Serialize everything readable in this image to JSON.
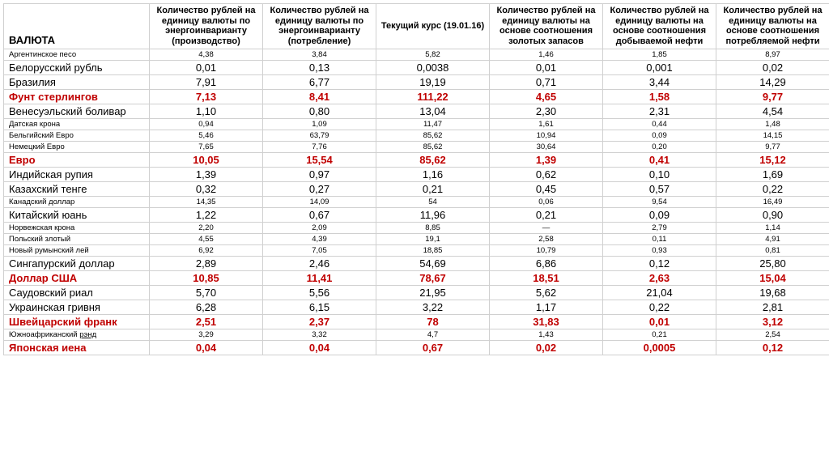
{
  "headers": {
    "currency": "ВАЛЮТА",
    "col1": "Количество рублей на единицу валюты по энергоинварианту (производство)",
    "col2": "Количество рублей на единицу валюты по энергоинварианту (потребление)",
    "col3": "Текущий курс (19.01.16)",
    "col4": "Количество рублей на единицу валюты  на основе соотношения золотых запасов",
    "col5": "Количество рублей на единицу валюты  на основе соотношения добываемой нефти",
    "col6": "Количество рублей на единицу валюты  на основе соотношения потребляемой нефти"
  },
  "rows": [
    {
      "name": "Аргентинское песо",
      "v": [
        "4,38",
        "3,84",
        "5,82",
        "1,46",
        "1,85",
        "8,97"
      ],
      "size": "small",
      "highlight": false,
      "underline": false
    },
    {
      "name": "Белорусский рубль",
      "v": [
        "0,01",
        "0,13",
        "0,0038",
        "0,01",
        "0,001",
        "0,02"
      ],
      "size": "normal",
      "highlight": false,
      "underline": false
    },
    {
      "name": "Бразилия",
      "v": [
        "7,91",
        "6,77",
        "19,19",
        "0,71",
        "3,44",
        "14,29"
      ],
      "size": "normal",
      "highlight": false,
      "underline": false
    },
    {
      "name": "Фунт стерлингов",
      "v": [
        "7,13",
        "8,41",
        "111,22",
        "4,65",
        "1,58",
        "9,77"
      ],
      "size": "normal",
      "highlight": true,
      "underline": false
    },
    {
      "name": "Венесуэльский боливар",
      "v": [
        "1,10",
        "0,80",
        "13,04",
        "2,30",
        "2,31",
        "4,54"
      ],
      "size": "normal",
      "highlight": false,
      "underline": false
    },
    {
      "name": "Датская крона",
      "v": [
        "0,94",
        "1,09",
        "11,47",
        "1,61",
        "0,44",
        "1,48"
      ],
      "size": "small",
      "highlight": false,
      "underline": false
    },
    {
      "name": "Бельгийский Евро",
      "v": [
        "5,46",
        "63,79",
        "85,62",
        "10,94",
        "0,09",
        "14,15"
      ],
      "size": "small",
      "highlight": false,
      "underline": false
    },
    {
      "name": "Немецкий Евро",
      "v": [
        "7,65",
        "7,76",
        "85,62",
        "30,64",
        "0,20",
        "9,77"
      ],
      "size": "small",
      "highlight": false,
      "underline": false
    },
    {
      "name": "Евро",
      "v": [
        "10,05",
        "15,54",
        "85,62",
        "1,39",
        "0,41",
        "15,12"
      ],
      "size": "normal",
      "highlight": true,
      "underline": false
    },
    {
      "name": "Индийская рупия",
      "v": [
        "1,39",
        "0,97",
        "1,16",
        "0,62",
        "0,10",
        "1,69"
      ],
      "size": "normal",
      "highlight": false,
      "underline": false
    },
    {
      "name": "Казахский тенге",
      "v": [
        "0,32",
        "0,27",
        "0,21",
        "0,45",
        "0,57",
        "0,22"
      ],
      "size": "normal",
      "highlight": false,
      "underline": false
    },
    {
      "name": "Канадский доллар",
      "v": [
        "14,35",
        "14,09",
        "54",
        "0,06",
        "9,54",
        "16,49"
      ],
      "size": "small",
      "highlight": false,
      "underline": false
    },
    {
      "name": "Китайский юань",
      "v": [
        "1,22",
        "0,67",
        "11,96",
        "0,21",
        "0,09",
        "0,90"
      ],
      "size": "normal",
      "highlight": false,
      "underline": false
    },
    {
      "name": "Норвежская крона",
      "v": [
        "2,20",
        "2,09",
        "8,85",
        "—",
        "2,79",
        "1,14"
      ],
      "size": "small",
      "highlight": false,
      "underline": false
    },
    {
      "name": "Польский злотый",
      "v": [
        "4,55",
        "4,39",
        "19,1",
        "2,58",
        "0,11",
        "4,91"
      ],
      "size": "small",
      "highlight": false,
      "underline": false
    },
    {
      "name": "Новый румынский лей",
      "v": [
        "6,92",
        "7,05",
        "18,85",
        "10,79",
        "0,93",
        "0,81"
      ],
      "size": "small",
      "highlight": false,
      "underline": false
    },
    {
      "name": "Сингапурский доллар",
      "v": [
        "2,89",
        "2,46",
        "54,69",
        "6,86",
        "0,12",
        "25,80"
      ],
      "size": "normal",
      "highlight": false,
      "underline": false
    },
    {
      "name": "Доллар США",
      "v": [
        "10,85",
        "11,41",
        "78,67",
        "18,51",
        "2,63",
        "15,04"
      ],
      "size": "normal",
      "highlight": true,
      "underline": false
    },
    {
      "name": "Саудовский риал",
      "v": [
        "5,70",
        "5,56",
        "21,95",
        "5,62",
        "21,04",
        "19,68"
      ],
      "size": "normal",
      "highlight": false,
      "underline": false
    },
    {
      "name": "Украинская гривня",
      "v": [
        "6,28",
        "6,15",
        "3,22",
        "1,17",
        "0,22",
        "2,81"
      ],
      "size": "normal",
      "highlight": false,
      "underline": false
    },
    {
      "name": "Швейцарский франк",
      "v": [
        "2,51",
        "2,37",
        "78",
        "31,83",
        "0,01",
        "3,12"
      ],
      "size": "normal",
      "highlight": true,
      "underline": false
    },
    {
      "name": "Южноафриканский рэнд",
      "v": [
        "3,29",
        "3,32",
        "4,7",
        "1,43",
        "0,21",
        "2,54"
      ],
      "size": "small",
      "highlight": false,
      "underline": true
    },
    {
      "name": "Японская иена",
      "v": [
        "0,04",
        "0,04",
        "0,67",
        "0,02",
        "0,0005",
        "0,12"
      ],
      "size": "normal",
      "highlight": true,
      "underline": false
    }
  ],
  "style": {
    "highlight_color": "#c00000",
    "border_color": "#d0d0d0",
    "background_color": "#ffffff",
    "header_fontsize": 11,
    "normal_fontsize": 13,
    "small_fontsize": 9.5
  }
}
